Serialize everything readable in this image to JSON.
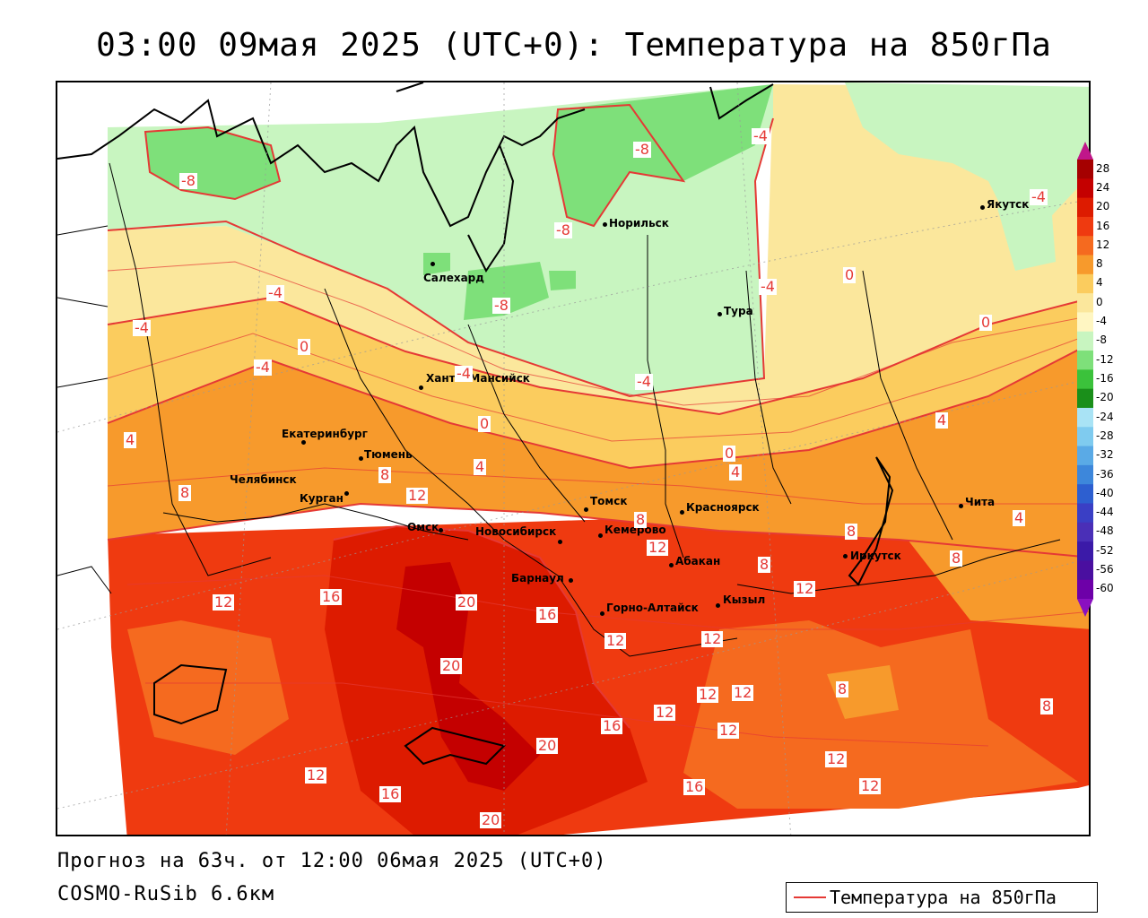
{
  "title": "03:00 09мая 2025 (UTC+0): Температура на 850гПа",
  "forecast_line": "Прогноз на 63ч. от 12:00 06мая 2025 (UTC+0)",
  "model_line": "COSMO-RuSib 6.6км",
  "legend": {
    "label": "Температура на 850гПа",
    "line_color": "#e53935"
  },
  "colorbar": {
    "labels": [
      "28",
      "24",
      "20",
      "16",
      "12",
      "8",
      "4",
      "0",
      "-4",
      "-8",
      "-12",
      "-16",
      "-20",
      "-24",
      "-28",
      "-32",
      "-36",
      "-40",
      "-44",
      "-48",
      "-52",
      "-56",
      "-60"
    ],
    "colors": [
      "#a50000",
      "#c40000",
      "#dd1b00",
      "#ef3a10",
      "#f56a1f",
      "#f79a2c",
      "#fbcc5e",
      "#fbe79c",
      "#fff6c2",
      "#c8f5c0",
      "#7ee07a",
      "#3bc23b",
      "#1a8f1a",
      "#a9e3f5",
      "#7fcbef",
      "#5aaae6",
      "#3d87db",
      "#2d5fd0",
      "#3a3fc5",
      "#4a2fb7",
      "#3b1aa8",
      "#4a0fa0",
      "#6d00a8"
    ]
  },
  "cities": [
    {
      "name": "Якутск"
    },
    {
      "name": "Норильск"
    },
    {
      "name": "Салехард"
    },
    {
      "name": "Тура"
    },
    {
      "name": "Ханты-Мансийск"
    },
    {
      "name": "Екатеринбург"
    },
    {
      "name": "Тюмень"
    },
    {
      "name": "Челябинск"
    },
    {
      "name": "Курган"
    },
    {
      "name": "Омск"
    },
    {
      "name": "Новосибирск"
    },
    {
      "name": "Томск"
    },
    {
      "name": "Кемерово"
    },
    {
      "name": "Красноярск"
    },
    {
      "name": "Барнаул"
    },
    {
      "name": "Абакан"
    },
    {
      "name": "Горно-Алтайск"
    },
    {
      "name": "Кызыл"
    },
    {
      "name": "Иркутск"
    },
    {
      "name": "Чита"
    }
  ],
  "isoline_labels": [
    "-8",
    "-8",
    "-8",
    "-8",
    "-4",
    "-4",
    "-4",
    "-4",
    "-4",
    "-4",
    "-4",
    "-4",
    "0",
    "0",
    "0",
    "0",
    "0",
    "4",
    "4",
    "4",
    "4",
    "4",
    "8",
    "8",
    "8",
    "8",
    "8",
    "8",
    "8",
    "8",
    "12",
    "12",
    "12",
    "12",
    "12",
    "12",
    "12",
    "12",
    "12",
    "12",
    "12",
    "12",
    "16",
    "16",
    "16",
    "16",
    "16",
    "20",
    "20",
    "20",
    "20",
    "12"
  ]
}
